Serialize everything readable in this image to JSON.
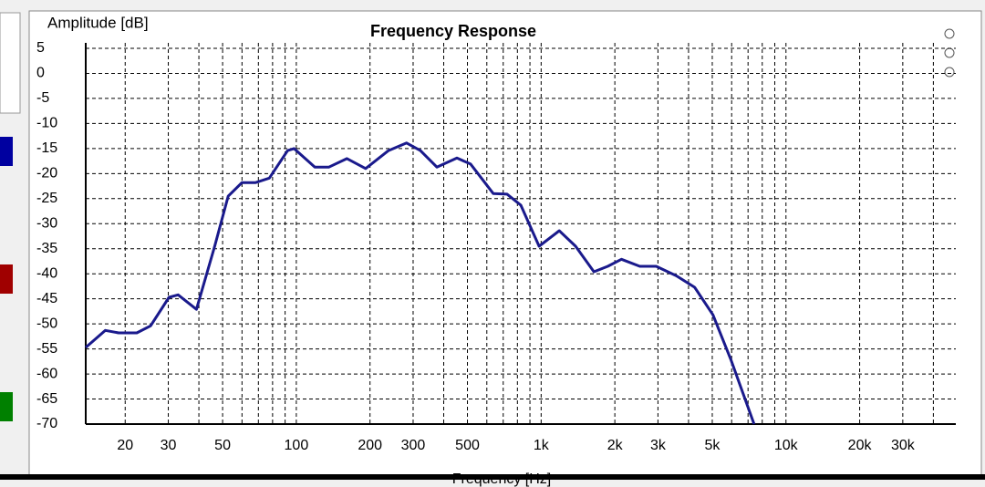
{
  "chart_data": {
    "type": "line",
    "title": "Frequency Response",
    "ylabel": "Amplitude [dB]",
    "xlabel": "Frequency [Hz]",
    "xscale": "log",
    "grid": true,
    "color": "#1a1a8c",
    "x": [
      13.8,
      16.6,
      18.8,
      22.3,
      25.4,
      30.2,
      32.9,
      39.1,
      46.4,
      52.7,
      60,
      68.2,
      77.6,
      92.2,
      97.9,
      119,
      136,
      161,
      192,
      238,
      282,
      321,
      375,
      453,
      515,
      638,
      726,
      826,
      981,
      1186,
      1383,
      1643,
      1871,
      2128,
      2529,
      2951,
      3564,
      4235,
      5032,
      5975,
      7410
    ],
    "values": [
      -54.7,
      -51.3,
      -51.8,
      -51.8,
      -50.4,
      -44.7,
      -44.2,
      -47.1,
      -34.5,
      -24.5,
      -21.8,
      -21.8,
      -20.9,
      -15.4,
      -15.0,
      -18.7,
      -18.7,
      -17.0,
      -19.0,
      -15.4,
      -13.9,
      -15.4,
      -18.7,
      -16.9,
      -18.1,
      -24.0,
      -24.1,
      -26.3,
      -34.5,
      -31.4,
      -34.5,
      -39.6,
      -38.5,
      -37.1,
      -38.5,
      -38.5,
      -40.4,
      -42.7,
      -48.2,
      -57.3,
      -70.0
    ],
    "xlim": [
      13.8,
      49400
    ],
    "ylim": [
      -70,
      5
    ],
    "xticks": [
      20,
      30,
      50,
      100,
      200,
      300,
      500,
      {
        "value": 1000,
        "label": "1k"
      },
      {
        "value": 2000,
        "label": "2k"
      },
      {
        "value": 3000,
        "label": "3k"
      },
      {
        "value": 5000,
        "label": "5k"
      },
      {
        "value": 10000,
        "label": "10k"
      },
      {
        "value": 20000,
        "label": "20k"
      },
      {
        "value": 30000,
        "label": "30k"
      }
    ],
    "xminorticks": [
      40,
      60,
      70,
      80,
      90,
      400,
      600,
      700,
      800,
      900,
      4000,
      6000,
      7000,
      8000,
      9000,
      40000
    ],
    "yticks": [
      5,
      0,
      -5,
      -10,
      -15,
      -20,
      -25,
      -30,
      -35,
      -40,
      -45,
      -50,
      -55,
      -60,
      -65,
      -70
    ]
  }
}
